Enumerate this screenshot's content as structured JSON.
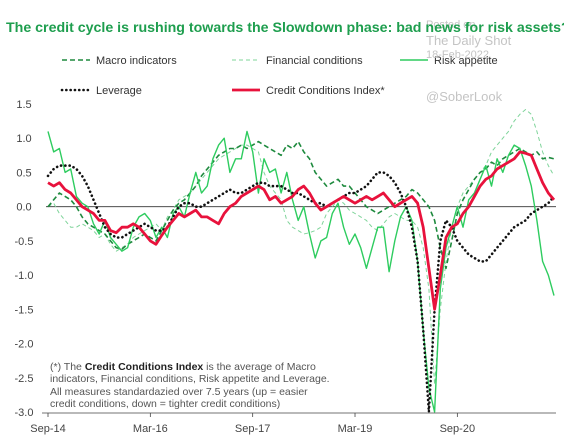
{
  "title": "The credit cycle is rushing towards the Slowdown phase: bad news for risk assets?",
  "watermark": {
    "line1": "Posted on",
    "line2": "The Daily Shot",
    "line3": "18-Feb-2022",
    "line4": "@SoberLook"
  },
  "note": {
    "prefix": "(*) The ",
    "bold": "Credit Conditions Index",
    "rest": " is the average of Macro indicators, Financial conditions, Risk appetite and Leverage. All measures standardazied over 7.5 years (up = easier credit conditions, down = tighter credit conditions)"
  },
  "colors": {
    "macro": "#1e8a3e",
    "financial": "#7fd49a",
    "risk": "#2ecc5f",
    "leverage": "#111111",
    "cci": "#e8123c",
    "title": "#1e9e4e"
  },
  "chart_data": {
    "type": "line",
    "title": "The credit cycle is rushing towards the Slowdown phase: bad news for risk assets?",
    "xlabel": "",
    "ylabel": "",
    "x_ticks": [
      "Sep-14",
      "Mar-16",
      "Sep-17",
      "Mar-19",
      "Sep-20"
    ],
    "x_tick_index": [
      0,
      18,
      36,
      54,
      72
    ],
    "x_count": 90,
    "ylim": [
      -3.0,
      1.5
    ],
    "y_ticks": [
      "1.5",
      "1.0",
      "0.5",
      "0.0",
      "-0.5",
      "-1.0",
      "-1.5",
      "-2.0",
      "-2.5",
      "-3.0"
    ],
    "grid": false,
    "legend_position": "top",
    "series": [
      {
        "name": "Macro indicators",
        "style": "dashed",
        "values": [
          0.0,
          0.1,
          0.2,
          0.15,
          0.1,
          0.0,
          -0.15,
          -0.25,
          -0.3,
          -0.35,
          -0.4,
          -0.5,
          -0.6,
          -0.62,
          -0.55,
          -0.5,
          -0.45,
          -0.4,
          -0.45,
          -0.5,
          -0.35,
          -0.2,
          -0.05,
          0.05,
          0.1,
          0.2,
          0.3,
          0.45,
          0.55,
          0.65,
          0.75,
          0.8,
          0.85,
          0.85,
          0.9,
          0.85,
          0.9,
          0.95,
          0.9,
          0.85,
          0.8,
          0.75,
          0.9,
          0.85,
          0.95,
          0.8,
          0.7,
          0.5,
          0.4,
          0.3,
          0.35,
          0.4,
          0.3,
          0.3,
          0.2,
          0.1,
          0.0,
          -0.05,
          -0.1,
          -0.05,
          0.0,
          0.05,
          0.1,
          0.15,
          0.25,
          0.2,
          0.1,
          0.0,
          -0.2,
          -0.6,
          -0.9,
          -0.5,
          -0.1,
          0.1,
          0.25,
          0.4,
          0.5,
          0.55,
          0.65,
          0.6,
          0.7,
          0.75,
          0.8,
          0.85,
          0.8,
          0.75,
          0.8,
          0.7,
          0.72,
          0.7
        ]
      },
      {
        "name": "Financial conditions",
        "style": "dashed-thin",
        "values": [
          0.0,
          0.05,
          -0.1,
          -0.2,
          -0.3,
          -0.3,
          -0.25,
          -0.3,
          -0.35,
          -0.45,
          -0.4,
          -0.55,
          -0.65,
          -0.6,
          -0.55,
          -0.45,
          -0.4,
          -0.35,
          -0.3,
          -0.25,
          -0.35,
          -0.15,
          -0.05,
          0.1,
          0.15,
          0.2,
          0.3,
          0.4,
          0.5,
          0.6,
          0.7,
          0.75,
          0.8,
          0.85,
          0.9,
          0.9,
          0.85,
          0.8,
          0.5,
          0.3,
          0.2,
          0.1,
          -0.2,
          -0.3,
          -0.35,
          -0.4,
          -0.38,
          -0.35,
          -0.3,
          -0.1,
          0.0,
          0.1,
          0.05,
          -0.05,
          -0.1,
          -0.15,
          -0.2,
          -0.3,
          -0.35,
          -0.25,
          -0.15,
          -0.1,
          -0.15,
          -0.2,
          -0.2,
          -0.3,
          -0.6,
          -1.2,
          -2.6,
          -1.5,
          -0.8,
          -0.3,
          0.0,
          0.2,
          0.3,
          0.4,
          0.5,
          0.6,
          0.8,
          0.9,
          1.0,
          1.1,
          1.25,
          1.35,
          1.42,
          1.35,
          1.1,
          0.8,
          0.6,
          0.45
        ]
      },
      {
        "name": "Risk appetite",
        "style": "solid-thin",
        "values": [
          1.1,
          0.8,
          0.85,
          0.5,
          0.55,
          0.15,
          0.05,
          0.0,
          -0.25,
          -0.4,
          -0.2,
          -0.45,
          -0.55,
          -0.65,
          -0.6,
          -0.3,
          -0.15,
          -0.1,
          -0.2,
          -0.45,
          -0.3,
          -0.45,
          -0.1,
          0.0,
          -0.15,
          0.2,
          0.5,
          0.2,
          0.3,
          0.7,
          0.9,
          1.0,
          0.5,
          0.7,
          0.7,
          1.1,
          0.8,
          0.2,
          0.7,
          0.5,
          0.55,
          0.2,
          0.5,
          0.1,
          -0.2,
          0.0,
          -0.4,
          -0.75,
          -0.5,
          -0.45,
          -0.1,
          0.05,
          -0.3,
          -0.55,
          -0.4,
          -0.6,
          -0.9,
          -0.6,
          -0.3,
          -0.3,
          -0.95,
          -0.5,
          -0.15,
          0.0,
          -0.2,
          -0.8,
          -1.8,
          -2.65,
          -3.2,
          -1.2,
          -0.6,
          -0.3,
          0.0,
          -0.3,
          0.1,
          0.2,
          0.4,
          0.6,
          0.3,
          0.7,
          0.5,
          0.75,
          0.9,
          0.85,
          0.6,
          0.3,
          -0.2,
          -0.8,
          -1.0,
          -1.3
        ]
      },
      {
        "name": "Leverage",
        "style": "dotted",
        "values": [
          0.45,
          0.55,
          0.6,
          0.6,
          0.6,
          0.55,
          0.45,
          0.3,
          0.1,
          -0.1,
          -0.3,
          -0.4,
          -0.45,
          -0.45,
          -0.4,
          -0.35,
          -0.3,
          -0.25,
          -0.3,
          -0.35,
          -0.35,
          -0.3,
          -0.15,
          0.0,
          0.05,
          0.05,
          0.0,
          0.0,
          0.05,
          0.1,
          0.15,
          0.2,
          0.25,
          0.2,
          0.2,
          0.25,
          0.3,
          0.35,
          0.35,
          0.3,
          0.3,
          0.3,
          0.25,
          0.2,
          0.2,
          0.15,
          0.1,
          0.05,
          0.05,
          0.0,
          0.05,
          0.1,
          0.15,
          0.2,
          0.2,
          0.25,
          0.3,
          0.4,
          0.5,
          0.5,
          0.45,
          0.35,
          0.2,
          0.0,
          -0.3,
          -0.8,
          -1.8,
          -3.2,
          -1.5,
          -0.5,
          -0.2,
          -0.3,
          -0.5,
          -0.6,
          -0.7,
          -0.75,
          -0.8,
          -0.8,
          -0.7,
          -0.6,
          -0.5,
          -0.4,
          -0.3,
          -0.25,
          -0.2,
          -0.1,
          -0.05,
          0.0,
          0.05,
          0.15
        ]
      },
      {
        "name": "Credit Conditions Index*",
        "style": "solid-thick",
        "values": [
          0.35,
          0.3,
          0.35,
          0.25,
          0.2,
          0.1,
          0.0,
          -0.05,
          -0.1,
          -0.2,
          -0.2,
          -0.35,
          -0.38,
          -0.3,
          -0.3,
          -0.25,
          -0.3,
          -0.4,
          -0.5,
          -0.55,
          -0.42,
          -0.3,
          -0.2,
          -0.1,
          -0.15,
          -0.1,
          -0.05,
          -0.15,
          -0.15,
          -0.2,
          -0.25,
          -0.1,
          0.0,
          0.05,
          0.15,
          0.2,
          0.25,
          0.3,
          0.25,
          0.1,
          0.15,
          0.05,
          0.1,
          0.15,
          0.25,
          0.3,
          0.2,
          0.05,
          -0.05,
          0.0,
          0.05,
          0.1,
          0.15,
          0.1,
          0.05,
          0.1,
          0.15,
          0.1,
          0.15,
          0.2,
          0.1,
          0.0,
          0.05,
          0.1,
          0.15,
          0.05,
          -0.3,
          -0.9,
          -1.5,
          -1.0,
          -0.45,
          -0.3,
          -0.25,
          -0.1,
          0.0,
          0.15,
          0.3,
          0.4,
          0.45,
          0.55,
          0.6,
          0.65,
          0.7,
          0.8,
          0.78,
          0.75,
          0.55,
          0.35,
          0.2,
          0.1
        ]
      }
    ]
  }
}
